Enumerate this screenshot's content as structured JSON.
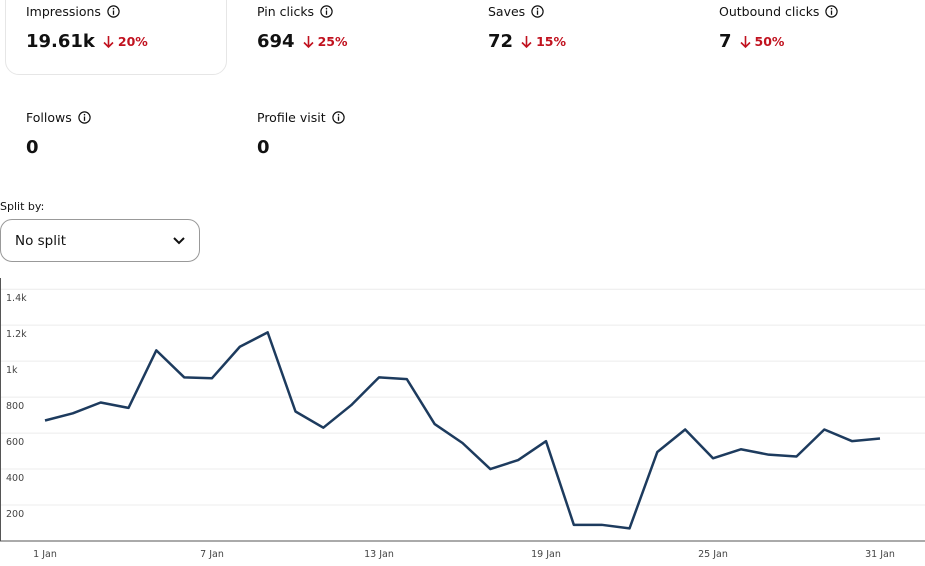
{
  "metrics": [
    {
      "label": "Impressions",
      "value": "19.61k",
      "change": "20%"
    },
    {
      "label": "Pin clicks",
      "value": 694,
      "change": "25%"
    },
    {
      "label": "Saves",
      "value": 72,
      "change": "15%"
    },
    {
      "label": "Outbound clicks",
      "value": 7,
      "change": "50%"
    },
    {
      "label": "Follows",
      "value": 0
    },
    {
      "label": "Profile visit",
      "value": 0
    }
  ],
  "split": {
    "label": "Split by:",
    "selected": "No split"
  },
  "chart_data": {
    "type": "line",
    "categories": [
      "1 Jan",
      null,
      null,
      null,
      null,
      null,
      "7 Jan",
      null,
      null,
      null,
      null,
      null,
      "13 Jan",
      null,
      null,
      null,
      null,
      null,
      "19 Jan",
      null,
      null,
      null,
      null,
      null,
      "25 Jan",
      null,
      null,
      null,
      null,
      null,
      "31 Jan"
    ],
    "values": [
      670,
      710,
      770,
      740,
      1060,
      910,
      905,
      1080,
      1160,
      720,
      630,
      755,
      910,
      900,
      650,
      545,
      400,
      450,
      555,
      90,
      90,
      70,
      495,
      620,
      460,
      510,
      480,
      470,
      620,
      555,
      570
    ],
    "color": "#1d3b5e",
    "ylim": [
      0,
      1440
    ],
    "yticks": [
      200,
      400,
      600,
      800,
      {
        "value": 1000,
        "label": "1k"
      },
      {
        "value": 1200,
        "label": "1.2k"
      },
      {
        "value": 1400,
        "label": "1.4k"
      }
    ],
    "grid": true
  }
}
